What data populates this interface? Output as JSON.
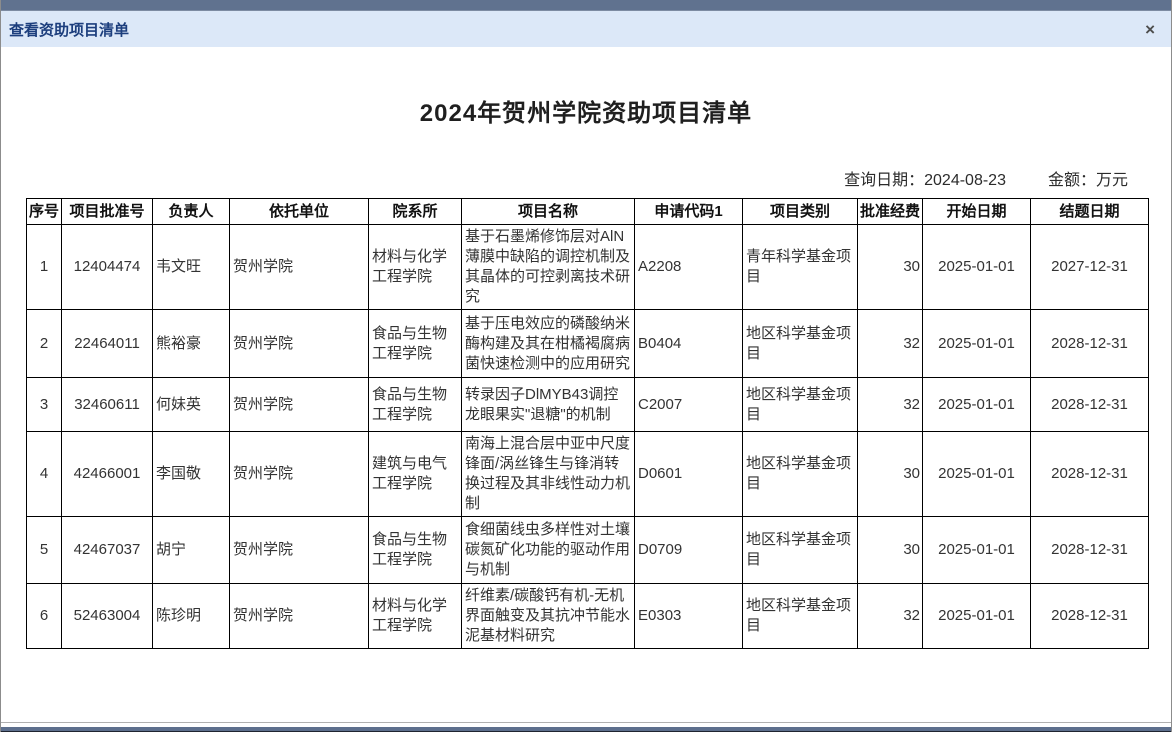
{
  "window": {
    "titlebar": {
      "title": "查看资助项目清单",
      "close_glyph": "×"
    }
  },
  "page": {
    "title": "2024年贺州学院资助项目清单",
    "query_date_label": "查询日期：",
    "query_date": "2024-08-23",
    "amount_label": "金额：",
    "amount_unit": "万元"
  },
  "table": {
    "headers": [
      "序号",
      "项目批准号",
      "负责人",
      "依托单位",
      "院系所",
      "项目名称",
      "申请代码1",
      "项目类别",
      "批准经费",
      "开始日期",
      "结题日期"
    ],
    "rows": [
      [
        "1",
        "12404474",
        "韦文旺",
        "贺州学院",
        "材料与化学工程学院",
        "基于石墨烯修饰层对AlN薄膜中缺陷的调控机制及其晶体的可控剥离技术研究",
        "A2208",
        "青年科学基金项目",
        "30",
        "2025-01-01",
        "2027-12-31"
      ],
      [
        "2",
        "22464011",
        "熊裕豪",
        "贺州学院",
        "食品与生物工程学院",
        "基于压电效应的磷酸纳米酶构建及其在柑橘褐腐病菌快速检测中的应用研究",
        "B0404",
        "地区科学基金项目",
        "32",
        "2025-01-01",
        "2028-12-31"
      ],
      [
        "3",
        "32460611",
        "何妹英",
        "贺州学院",
        "食品与生物工程学院",
        "转录因子DlMYB43调控龙眼果实\"退糖\"的机制",
        "C2007",
        "地区科学基金项目",
        "32",
        "2025-01-01",
        "2028-12-31"
      ],
      [
        "4",
        "42466001",
        "李国敬",
        "贺州学院",
        "建筑与电气工程学院",
        "南海上混合层中亚中尺度锋面/涡丝锋生与锋消转换过程及其非线性动力机制",
        "D0601",
        "地区科学基金项目",
        "30",
        "2025-01-01",
        "2028-12-31"
      ],
      [
        "5",
        "42467037",
        "胡宁",
        "贺州学院",
        "食品与生物工程学院",
        "食细菌线虫多样性对土壤碳氮矿化功能的驱动作用与机制",
        "D0709",
        "地区科学基金项目",
        "30",
        "2025-01-01",
        "2028-12-31"
      ],
      [
        "6",
        "52463004",
        "陈珍明",
        "贺州学院",
        "材料与化学工程学院",
        "纤维素/碳酸钙有机-无机界面触变及其抗冲节能水泥基材料研究",
        "E0303",
        "地区科学基金项目",
        "32",
        "2025-01-01",
        "2028-12-31"
      ]
    ]
  }
}
